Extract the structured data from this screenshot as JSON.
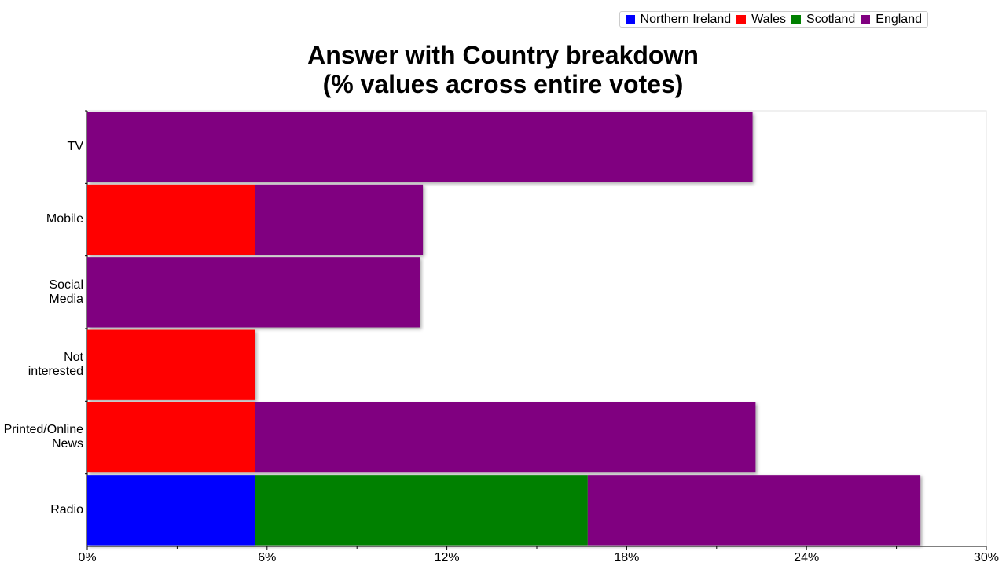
{
  "chart_data": {
    "type": "stacked-bar",
    "orientation": "horizontal",
    "title": "Answer with Country breakdown\n(% values across entire votes)",
    "categories": [
      "TV",
      "Mobile",
      "Social Media",
      "Not interested",
      "Printed/Online News",
      "Radio"
    ],
    "series": [
      {
        "name": "Northern Ireland",
        "color": "#0000ff",
        "values": [
          null,
          null,
          null,
          null,
          null,
          5.6
        ]
      },
      {
        "name": "Wales",
        "color": "#ff0000",
        "values": [
          null,
          5.6,
          null,
          5.6,
          5.6,
          null
        ]
      },
      {
        "name": "Scotland",
        "color": "#008000",
        "values": [
          null,
          null,
          null,
          null,
          null,
          11.1
        ]
      },
      {
        "name": "England",
        "color": "#800080",
        "values": [
          22.2,
          5.6,
          11.1,
          null,
          16.7,
          11.1
        ]
      }
    ],
    "xlim": [
      0,
      30
    ],
    "xticks": [
      {
        "value": 0,
        "label": "0%"
      },
      {
        "value": 6,
        "label": "6%"
      },
      {
        "value": 12,
        "label": "12%"
      },
      {
        "value": 18,
        "label": "18%"
      },
      {
        "value": 24,
        "label": "24%"
      },
      {
        "value": 30,
        "label": "30%"
      }
    ],
    "legend": "top-right"
  }
}
